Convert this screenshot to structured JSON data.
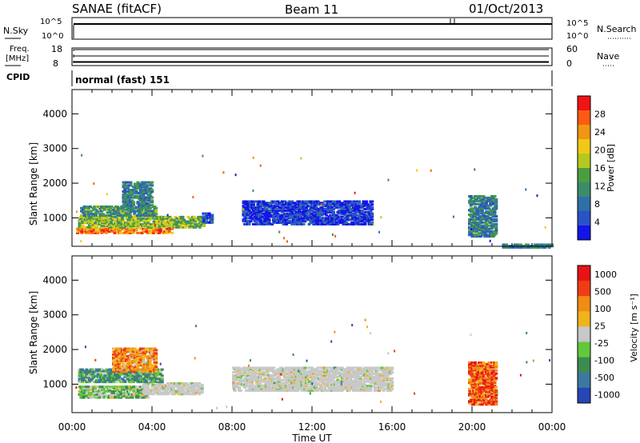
{
  "header": {
    "station": "SANAE (fitACF)",
    "beam": "Beam 11",
    "date": "01/Oct/2013"
  },
  "sky_panel": {
    "left_label": "N.Sky",
    "right_label": "N.Search",
    "left_ticks": [
      "10^5",
      "10^0"
    ],
    "right_ticks": [
      "10^5",
      "10^0"
    ]
  },
  "freq_panel": {
    "left_label_1": "Freq.",
    "left_label_2": "[MHz]",
    "right_label": "Nave",
    "left_ticks": [
      "18",
      "8"
    ],
    "right_ticks": [
      "60",
      "0"
    ]
  },
  "cpid": {
    "label": "CPID",
    "value": "normal (fast) 151"
  },
  "chart_data": [
    {
      "type": "heatmap",
      "name": "power",
      "ylabel": "Slant Range [km]",
      "xlabel": "",
      "ylim": [
        180,
        4700
      ],
      "xlim_hours": [
        0,
        24
      ],
      "y_ticks": [
        1000,
        2000,
        3000,
        4000
      ],
      "colorbar": {
        "label": "Power [dB]",
        "range": [
          0,
          32
        ],
        "ticks": [
          "4",
          "8",
          "12",
          "16",
          "20",
          "24",
          "28"
        ],
        "colors": [
          "#1414e6",
          "#2a52c8",
          "#2f6fa8",
          "#3c8c6a",
          "#4a9e40",
          "#b4c81e",
          "#f0c814",
          "#f09614",
          "#ff5a14",
          "#f01414"
        ]
      },
      "regions": [
        {
          "t0": 0.2,
          "t1": 5.0,
          "r0": 600,
          "r1": 760,
          "level": 0.8
        },
        {
          "t0": 0.3,
          "t1": 6.6,
          "r0": 760,
          "r1": 1100,
          "level": 0.5
        },
        {
          "t0": 0.4,
          "t1": 4.2,
          "r0": 1100,
          "r1": 1400,
          "level": 0.35
        },
        {
          "t0": 2.5,
          "t1": 4.0,
          "r0": 1400,
          "r1": 2100,
          "level": 0.3
        },
        {
          "t0": 6.5,
          "t1": 7.0,
          "r0": 900,
          "r1": 1200,
          "level": 0.15
        },
        {
          "t0": 8.5,
          "t1": 15.0,
          "r0": 850,
          "r1": 1550,
          "level": 0.1
        },
        {
          "t0": 19.8,
          "t1": 21.2,
          "r0": 500,
          "r1": 1700,
          "level": 0.3
        },
        {
          "t0": 21.5,
          "t1": 24.0,
          "r0": 180,
          "r1": 300,
          "level": 0.3
        }
      ]
    },
    {
      "type": "heatmap",
      "name": "velocity",
      "ylabel": "Slant Range [km]",
      "xlabel": "Time UT",
      "ylim": [
        180,
        4700
      ],
      "xlim_hours": [
        0,
        24
      ],
      "y_ticks": [
        1000,
        2000,
        3000,
        4000
      ],
      "x_ticks": [
        "00:00",
        "04:00",
        "08:00",
        "12:00",
        "16:00",
        "20:00",
        "00:00"
      ],
      "colorbar": {
        "label": "Velocity [m s⁻¹]",
        "ticks": [
          "1000",
          "500",
          "100",
          "25",
          "-25",
          "-100",
          "-500",
          "-1000"
        ],
        "colors": [
          "#2846b4",
          "#3c78a0",
          "#3c8c50",
          "#64c83c",
          "#c8c8c8",
          "#f0b41e",
          "#f08c14",
          "#f03c14",
          "#e61414"
        ]
      },
      "regions": [
        {
          "t0": 0.3,
          "t1": 3.8,
          "r0": 650,
          "r1": 1000,
          "level": 0.4
        },
        {
          "t0": 3.5,
          "t1": 6.5,
          "r0": 750,
          "r1": 1100,
          "level": 0.5
        },
        {
          "t0": 0.3,
          "t1": 4.5,
          "r0": 1100,
          "r1": 1500,
          "level": 0.3
        },
        {
          "t0": 2.0,
          "t1": 4.2,
          "r0": 1400,
          "r1": 2100,
          "level": 0.7
        },
        {
          "t0": 8.0,
          "t1": 16.0,
          "r0": 850,
          "r1": 1550,
          "level": 0.5
        },
        {
          "t0": 19.8,
          "t1": 21.2,
          "r0": 450,
          "r1": 1700,
          "level": 0.8
        }
      ]
    }
  ]
}
